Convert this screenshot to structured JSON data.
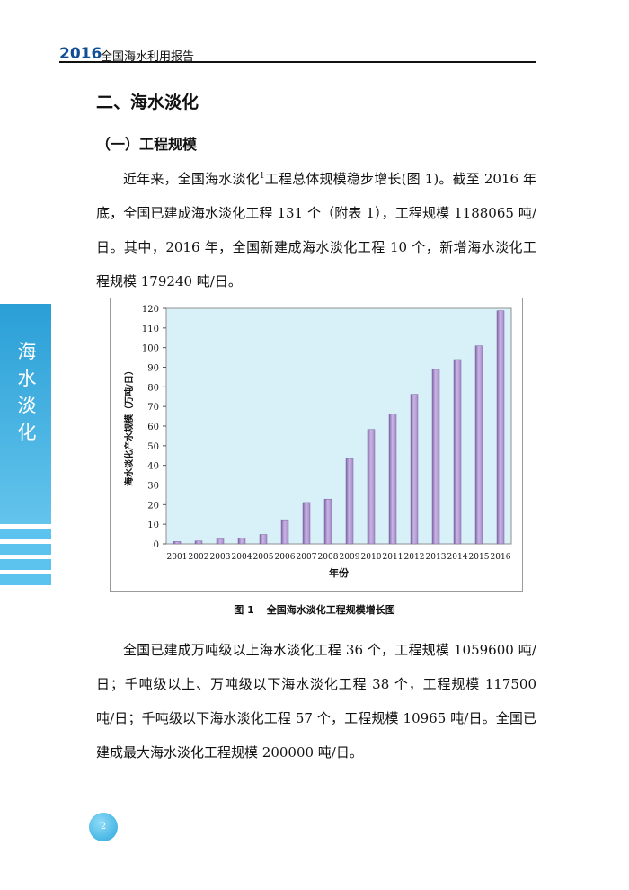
{
  "header": {
    "year": "2016",
    "title": "全国海水利用报告"
  },
  "section_title": "二、海水淡化",
  "subsection_title": "（一）工程规模",
  "paragraph1": {
    "before_sup": "近年来，全国海水淡化",
    "sup": "1",
    "after_sup": "工程总体规模稳步增长(图 1)。截至 2016 年底，全国已建成海水淡化工程 131 个（附表 1），工程规模 1188065 吨/日。其中，2016 年，全国新建成海水淡化工程 10 个，新增海水淡化工程规模 179240 吨/日。"
  },
  "paragraph2": "全国已建成万吨级以上海水淡化工程 36 个，工程规模 1059600 吨/日；千吨级以上、万吨级以下海水淡化工程 38 个，工程规模 117500 吨/日；千吨级以下海水淡化工程 57 个，工程规模 10965 吨/日。全国已建成最大海水淡化工程规模 200000 吨/日。",
  "sidebar_label": [
    "海",
    "水",
    "淡",
    "化"
  ],
  "caption": {
    "number": "图 1",
    "text": "全国海水淡化工程规模增长图"
  },
  "page_number": "2",
  "colors": {
    "plot_background": "#d8f1f8",
    "bar": "#a58cc6",
    "sidebar": "#2a9fd6",
    "header_year": "#0f4e96"
  },
  "chart_data": {
    "type": "bar",
    "title": "",
    "xlabel": "年份",
    "ylabel": "海水淡化产水规模（万吨/日）",
    "ylim": [
      0,
      120
    ],
    "yticks": [
      0,
      10,
      20,
      30,
      40,
      50,
      60,
      70,
      80,
      90,
      100,
      110,
      120
    ],
    "grid": false,
    "legend": "none",
    "categories": [
      "2001",
      "2002",
      "2003",
      "2004",
      "2005",
      "2006",
      "2007",
      "2008",
      "2009",
      "2010",
      "2011",
      "2012",
      "2013",
      "2014",
      "2015",
      "2016"
    ],
    "values": [
      1.2,
      1.5,
      2.5,
      3.0,
      4.8,
      12.3,
      21.1,
      22.8,
      43.5,
      58.3,
      66.2,
      76.2,
      88.9,
      93.9,
      100.9,
      118.8
    ]
  }
}
